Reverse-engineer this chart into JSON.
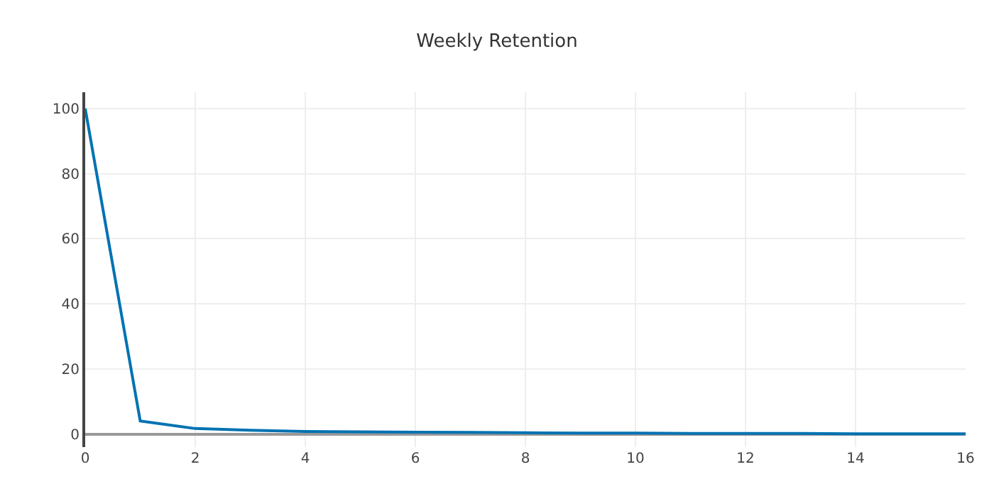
{
  "chart_data": {
    "type": "line",
    "title": "Weekly Retention",
    "x": [
      0,
      1,
      2,
      3,
      4,
      5,
      6,
      7,
      8,
      9,
      10,
      11,
      12,
      13,
      14,
      15,
      16
    ],
    "series": [
      {
        "color": "#0072b2",
        "values": [
          100,
          4,
          1.7,
          1.2,
          0.8,
          0.7,
          0.6,
          0.5,
          0.4,
          0.3,
          0.3,
          0.2,
          0.2,
          0.2,
          0.1,
          0.1,
          0.1
        ]
      }
    ],
    "xlim": [
      0,
      16
    ],
    "xticks": [
      0,
      2,
      4,
      6,
      8,
      10,
      12,
      14,
      16
    ],
    "ylim": [
      -4,
      105
    ],
    "yticks": [
      0,
      20,
      40,
      60,
      80,
      100
    ],
    "grid": true,
    "marker": "none",
    "line_style": "solid"
  }
}
